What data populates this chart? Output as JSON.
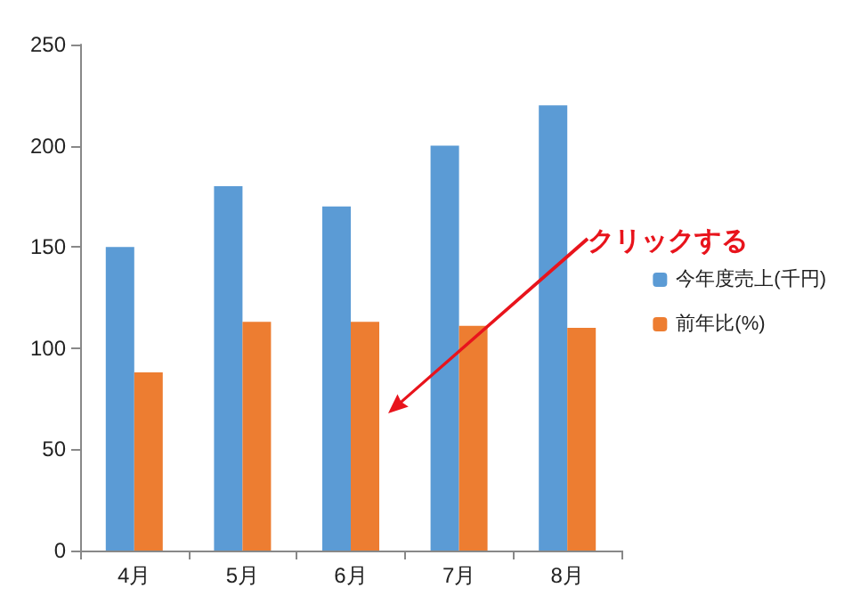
{
  "chart_data": {
    "type": "bar",
    "categories": [
      "4月",
      "5月",
      "6月",
      "7月",
      "8月"
    ],
    "series": [
      {
        "name": "今年度売上(千円)",
        "color": "#5b9bd5",
        "values": [
          150,
          180,
          170,
          200,
          220
        ]
      },
      {
        "name": "前年比(%)",
        "color": "#ed7d31",
        "values": [
          88,
          113,
          113,
          111,
          110
        ]
      }
    ],
    "ylim": [
      0,
      250
    ],
    "yticks": [
      0,
      50,
      100,
      150,
      200,
      250
    ],
    "grid": false,
    "legend": "right",
    "annotations": [
      "クリックする"
    ]
  }
}
